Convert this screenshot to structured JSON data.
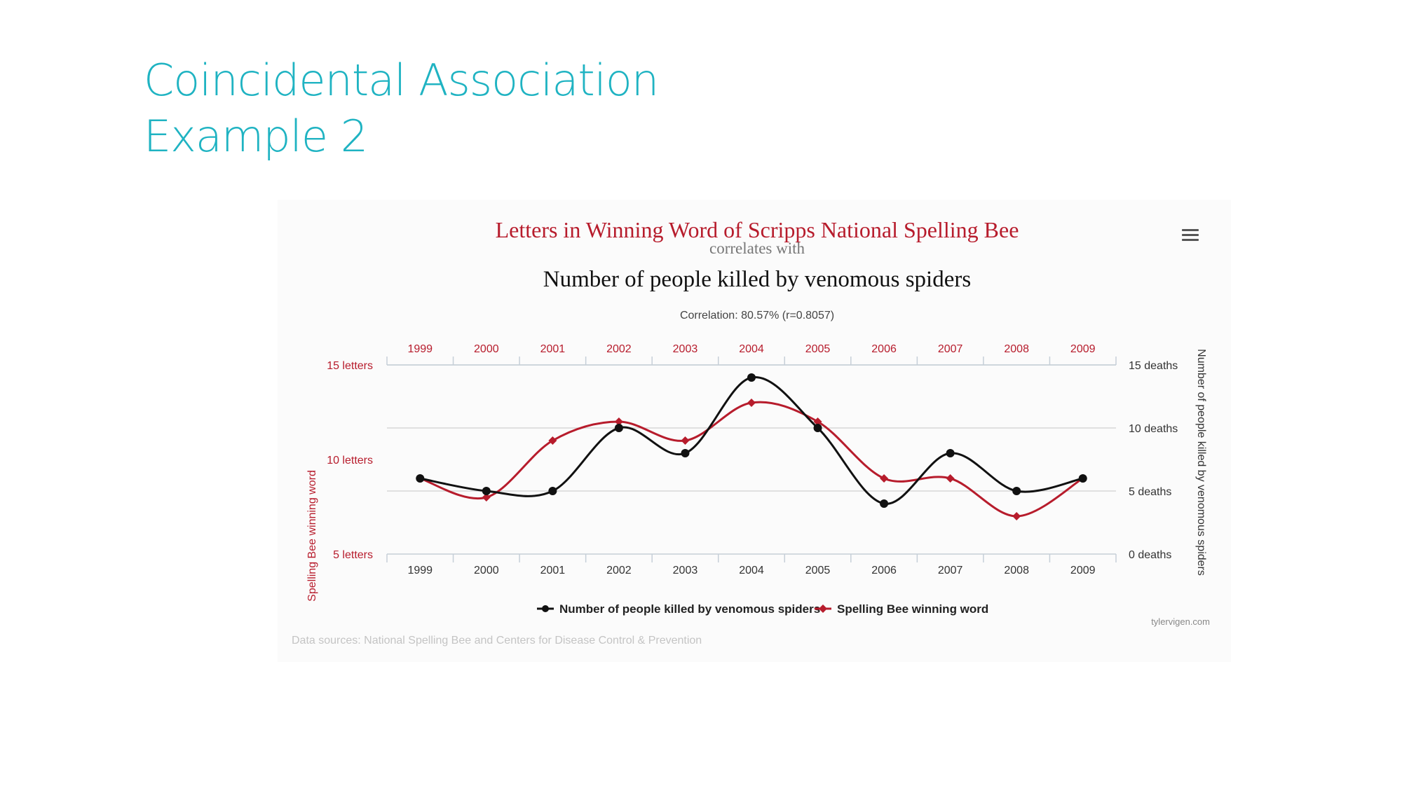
{
  "slide": {
    "title_line1": "Coincidental Association",
    "title_line2": "Example 2"
  },
  "chart_data": {
    "type": "line",
    "title": "Letters in Winning Word of Scripps National Spelling Bee",
    "connector": "correlates with",
    "subtitle": "Number of people killed by venomous spiders",
    "correlation": "Correlation: 80.57% (r=0.8057)",
    "x": [
      1999,
      2000,
      2001,
      2002,
      2003,
      2004,
      2005,
      2006,
      2007,
      2008,
      2009
    ],
    "y_left_label": "Spelling Bee winning word",
    "y_left_ticks": [
      "5 letters",
      "10 letters",
      "15 letters"
    ],
    "y_left_range": [
      5,
      15
    ],
    "y_right_label": "Number of people killed by venomous spiders",
    "y_right_ticks": [
      "0 deaths",
      "5 deaths",
      "10 deaths",
      "15 deaths"
    ],
    "y_right_range": [
      0,
      15
    ],
    "grid": true,
    "legend_position": "bottom-center",
    "series": [
      {
        "name": "Number of people killed by venomous spiders",
        "axis": "right",
        "color": "#111111",
        "values": [
          6,
          5,
          5,
          10,
          8,
          14,
          10,
          4,
          8,
          5,
          6
        ]
      },
      {
        "name": "Spelling Bee winning word",
        "axis": "left",
        "color": "#b71c2c",
        "values": [
          9,
          8,
          11,
          12,
          11,
          13,
          12,
          9,
          9,
          7,
          9
        ]
      }
    ],
    "credit": "tylervigen.com",
    "source": "Data sources: National Spelling Bee and Centers for Disease Control & Prevention"
  }
}
